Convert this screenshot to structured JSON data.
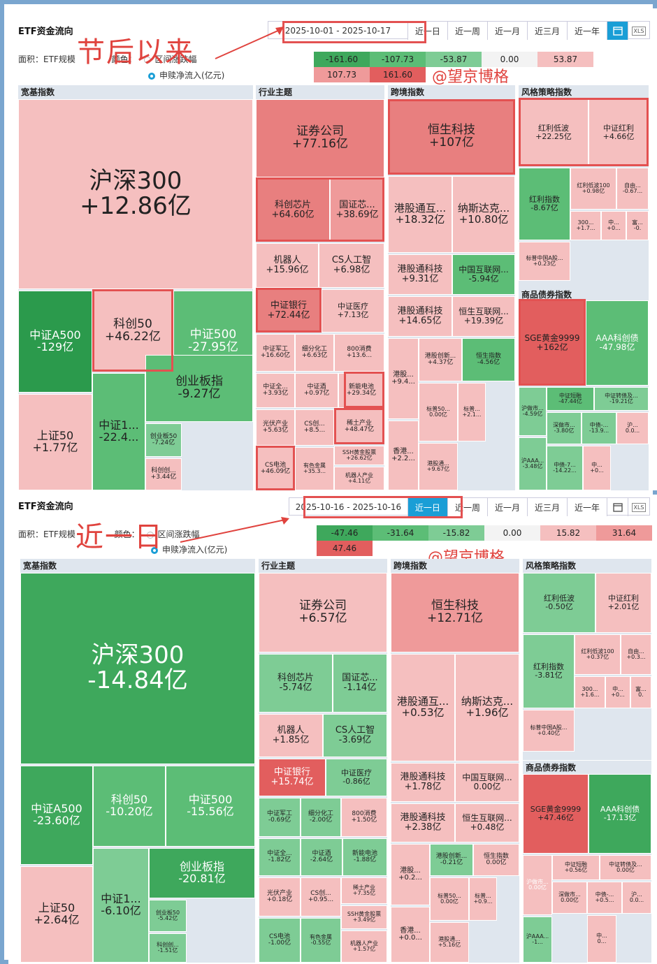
{
  "app_title": "ETF资金流向",
  "controls": {
    "area_label": "面积：ETF规模",
    "color_label": "颜色：",
    "option_range": "区间涨跌幅",
    "option_flow": "申赎净流入(亿元)"
  },
  "buttons": {
    "day": "近一日",
    "week": "近一周",
    "month": "近一月",
    "three_months": "近三月",
    "year": "近一年",
    "xls": "XLS"
  },
  "sections": {
    "broad": "宽基指数",
    "industry": "行业主题",
    "cross": "跨境指数",
    "style": "风格策略指数",
    "commodity": "商品债券指数"
  },
  "colors": {
    "red_strong": "#e25e5e",
    "red_light": "#f5bfbf",
    "green_strong": "#2b9a4c",
    "green_light": "#7ecc95",
    "accent_blue": "#1a9ed6",
    "annotation": "#e0433e"
  },
  "panel1": {
    "date_range": "2025-10-01 - 2025-10-17",
    "annotation": "节后以来",
    "watermark": "@望京博格",
    "legend": [
      "-161.60",
      "-107.73",
      "-53.87",
      "0.00",
      "53.87",
      "107.73",
      "161.60"
    ],
    "cells": [
      {
        "name": "沪深300",
        "value": "+12.86亿"
      },
      {
        "name": "中证A500",
        "value": "-129亿"
      },
      {
        "name": "科创50",
        "value": "+46.22亿"
      },
      {
        "name": "中证500",
        "value": "-27.95亿"
      },
      {
        "name": "创业板指",
        "value": "-9.27亿"
      },
      {
        "name": "上证50",
        "value": "+1.77亿"
      },
      {
        "name": "中证1...",
        "value": "-22.4..."
      },
      {
        "name": "创业板50",
        "value": "-7.24亿"
      },
      {
        "name": "科创创...",
        "value": "+3.44亿"
      },
      {
        "name": "证券公司",
        "value": "+77.16亿"
      },
      {
        "name": "科创芯片",
        "value": "+64.60亿"
      },
      {
        "name": "国证芯...",
        "value": "+38.69亿"
      },
      {
        "name": "机器人",
        "value": "+15.96亿"
      },
      {
        "name": "CS人工智",
        "value": "+6.98亿"
      },
      {
        "name": "中证银行",
        "value": "+72.44亿"
      },
      {
        "name": "中证医疗",
        "value": "+7.13亿"
      },
      {
        "name": "中证军工",
        "value": "+16.60亿"
      },
      {
        "name": "细分化工",
        "value": "+6.63亿"
      },
      {
        "name": "800消费",
        "value": "+13.6..."
      },
      {
        "name": "中证全...",
        "value": "+3.93亿"
      },
      {
        "name": "中证酒",
        "value": "+0.97亿"
      },
      {
        "name": "新能电池",
        "value": "+29.34亿"
      },
      {
        "name": "光伏产业",
        "value": "+5.63亿"
      },
      {
        "name": "CS创...",
        "value": "+8.5..."
      },
      {
        "name": "稀土产业",
        "value": "+48.47亿"
      },
      {
        "name": "SSH黄金股票",
        "value": "+26.62亿"
      },
      {
        "name": "CS电池",
        "value": "+46.09亿"
      },
      {
        "name": "有色金属",
        "value": "+35.3..."
      },
      {
        "name": "机器人产业",
        "value": "+4.11亿"
      },
      {
        "name": "恒生科技",
        "value": "+107亿"
      },
      {
        "name": "港股通互...",
        "value": "+18.32亿"
      },
      {
        "name": "纳斯达克...",
        "value": "+10.80亿"
      },
      {
        "name": "港股通科技",
        "value": "+9.31亿"
      },
      {
        "name": "中国互联网...",
        "value": "-5.94亿"
      },
      {
        "name": "港股通科技",
        "value": "+14.65亿"
      },
      {
        "name": "恒生互联网...",
        "value": "+19.39亿"
      },
      {
        "name": "港股...",
        "value": "+9.4..."
      },
      {
        "name": "港股创新...",
        "value": "+4.37亿"
      },
      {
        "name": "恒生指数",
        "value": "-4.56亿"
      },
      {
        "name": "标普50...",
        "value": "0.00亿"
      },
      {
        "name": "标普...",
        "value": "+2.1..."
      },
      {
        "name": "香港...",
        "value": "+2.2..."
      },
      {
        "name": "港股通...",
        "value": "+9.67亿"
      },
      {
        "name": "红利低波",
        "value": "+22.25亿"
      },
      {
        "name": "中证红利",
        "value": "+4.66亿"
      },
      {
        "name": "红利指数",
        "value": "-8.67亿"
      },
      {
        "name": "红利低波100",
        "value": "+0.98亿"
      },
      {
        "name": "自由...",
        "value": "-0.67..."
      },
      {
        "name": "300...",
        "value": "+1.7..."
      },
      {
        "name": "中...",
        "value": "+0..."
      },
      {
        "name": "富...",
        "value": "-0."
      },
      {
        "name": "标普中国A股...",
        "value": "+0.23亿"
      },
      {
        "name": "SGE黄金9999",
        "value": "+162亿"
      },
      {
        "name": "AAA科创债",
        "value": "-47.98亿"
      },
      {
        "name": "沪做市...",
        "value": "-4.59亿"
      },
      {
        "name": "中证短融",
        "value": "-47.44亿"
      },
      {
        "name": "中证转债及...",
        "value": "-19.21亿"
      },
      {
        "name": "深做市...",
        "value": "-3.80亿"
      },
      {
        "name": "中债-...",
        "value": "-13.9..."
      },
      {
        "name": "沪...",
        "value": "0.0..."
      },
      {
        "name": "沪AAA...",
        "value": "-3.48亿"
      },
      {
        "name": "中债-7...",
        "value": "-14.22..."
      },
      {
        "name": "中...",
        "value": "+0..."
      }
    ]
  },
  "panel2": {
    "date_range": "2025-10-16 - 2025-10-16",
    "annotation": "近一日",
    "watermark": "@望京博格",
    "legend": [
      "-47.46",
      "-31.64",
      "-15.82",
      "0.00",
      "15.82",
      "31.64",
      "47.46"
    ],
    "cells": [
      {
        "name": "沪深300",
        "value": "-14.84亿"
      },
      {
        "name": "中证A500",
        "value": "-23.60亿"
      },
      {
        "name": "科创50",
        "value": "-10.20亿"
      },
      {
        "name": "中证500",
        "value": "-15.56亿"
      },
      {
        "name": "创业板指",
        "value": "-20.81亿"
      },
      {
        "name": "上证50",
        "value": "+2.64亿"
      },
      {
        "name": "中证1...",
        "value": "-6.10亿"
      },
      {
        "name": "创业板50",
        "value": "-5.42亿"
      },
      {
        "name": "科创创...",
        "value": "-1.51亿"
      },
      {
        "name": "证券公司",
        "value": "+6.57亿"
      },
      {
        "name": "科创芯片",
        "value": "-5.74亿"
      },
      {
        "name": "国证芯...",
        "value": "-1.14亿"
      },
      {
        "name": "机器人",
        "value": "+1.85亿"
      },
      {
        "name": "CS人工智",
        "value": "-3.69亿"
      },
      {
        "name": "中证银行",
        "value": "+15.74亿"
      },
      {
        "name": "中证医疗",
        "value": "-0.86亿"
      },
      {
        "name": "中证军工",
        "value": "-0.69亿"
      },
      {
        "name": "细分化工",
        "value": "-2.00亿"
      },
      {
        "name": "800消费",
        "value": "+1.50亿"
      },
      {
        "name": "中证全...",
        "value": "-1.82亿"
      },
      {
        "name": "中证酒",
        "value": "-2.64亿"
      },
      {
        "name": "新能电池",
        "value": "-1.88亿"
      },
      {
        "name": "光伏产业",
        "value": "+0.18亿"
      },
      {
        "name": "CS创...",
        "value": "+0.95..."
      },
      {
        "name": "稀土产业",
        "value": "+7.35亿"
      },
      {
        "name": "SSH黄金股票",
        "value": "+3.49亿"
      },
      {
        "name": "CS电池",
        "value": "-1.00亿"
      },
      {
        "name": "有色金属",
        "value": "-0.55亿"
      },
      {
        "name": "机器人产业",
        "value": "+1.57亿"
      },
      {
        "name": "恒生科技",
        "value": "+12.71亿"
      },
      {
        "name": "港股通互...",
        "value": "+0.53亿"
      },
      {
        "name": "纳斯达克...",
        "value": "+1.96亿"
      },
      {
        "name": "港股通科技",
        "value": "+1.78亿"
      },
      {
        "name": "中国互联网...",
        "value": "0.00亿"
      },
      {
        "name": "港股通科技",
        "value": "+2.38亿"
      },
      {
        "name": "恒生互联网...",
        "value": "+0.48亿"
      },
      {
        "name": "港股...",
        "value": "+0.2..."
      },
      {
        "name": "港股创新...",
        "value": "-0.21亿"
      },
      {
        "name": "恒生指数",
        "value": "0.00亿"
      },
      {
        "name": "标普50...",
        "value": "0.00亿"
      },
      {
        "name": "标普...",
        "value": "+0.9..."
      },
      {
        "name": "香港...",
        "value": "+0.0..."
      },
      {
        "name": "港股通...",
        "value": "+5.16亿"
      },
      {
        "name": "红利低波",
        "value": "-0.50亿"
      },
      {
        "name": "中证红利",
        "value": "+2.01亿"
      },
      {
        "name": "红利指数",
        "value": "-3.81亿"
      },
      {
        "name": "红利低波100",
        "value": "+0.37亿"
      },
      {
        "name": "自由...",
        "value": "+0.3..."
      },
      {
        "name": "300...",
        "value": "+1.6..."
      },
      {
        "name": "中...",
        "value": "+0..."
      },
      {
        "name": "富...",
        "value": "0."
      },
      {
        "name": "标普中国A股...",
        "value": "+0.40亿"
      },
      {
        "name": "SGE黄金9999",
        "value": "+47.46亿"
      },
      {
        "name": "AAA科创债",
        "value": "-17.13亿"
      },
      {
        "name": "沪做市...",
        "value": "0.00亿"
      },
      {
        "name": "中证短融",
        "value": "+0.56亿"
      },
      {
        "name": "中证转债及...",
        "value": "0.00亿"
      },
      {
        "name": "深做市...",
        "value": "0.00亿"
      },
      {
        "name": "中债-...",
        "value": "+0.5..."
      },
      {
        "name": "沪...",
        "value": "0.0..."
      },
      {
        "name": "沪AAA...",
        "value": "-1..."
      },
      {
        "name": "中...",
        "value": "0..."
      }
    ]
  }
}
